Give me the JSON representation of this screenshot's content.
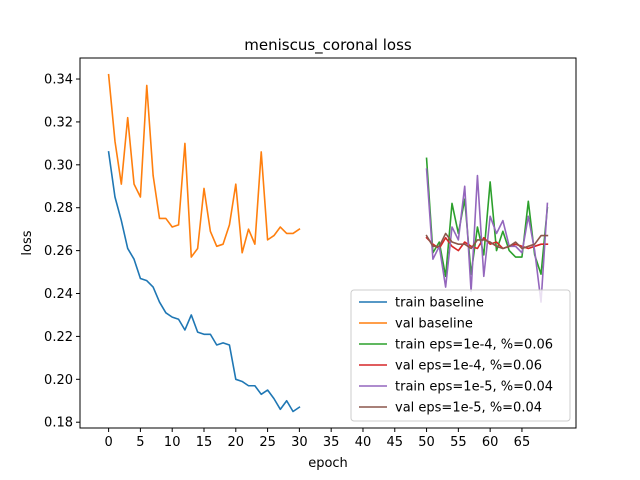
{
  "chart_data": {
    "type": "line",
    "title": "meniscus_coronal loss",
    "xlabel": "epoch",
    "ylabel": "loss",
    "xlim": [
      -4.5,
      73.5
    ],
    "ylim": [
      0.1773,
      0.3498
    ],
    "xticks": [
      0,
      5,
      10,
      15,
      20,
      25,
      30,
      35,
      40,
      45,
      50,
      55,
      60,
      65
    ],
    "yticks": [
      0.18,
      0.2,
      0.22,
      0.24,
      0.26,
      0.28,
      0.3,
      0.32,
      0.34
    ],
    "grid": false,
    "legend_position": "lower-right",
    "series": [
      {
        "name": "train baseline",
        "color": "#1f77b4",
        "x": [
          0,
          1,
          2,
          3,
          4,
          5,
          6,
          7,
          8,
          9,
          10,
          11,
          12,
          13,
          14,
          15,
          16,
          17,
          18,
          19,
          20,
          21,
          22,
          23,
          24,
          25,
          26,
          27,
          28,
          29,
          30
        ],
        "values": [
          0.306,
          0.285,
          0.274,
          0.261,
          0.256,
          0.247,
          0.246,
          0.243,
          0.236,
          0.231,
          0.229,
          0.228,
          0.223,
          0.23,
          0.222,
          0.221,
          0.221,
          0.216,
          0.217,
          0.216,
          0.2,
          0.199,
          0.197,
          0.197,
          0.193,
          0.195,
          0.191,
          0.186,
          0.19,
          0.185,
          0.187
        ]
      },
      {
        "name": "val baseline",
        "color": "#ff7f0e",
        "x": [
          0,
          1,
          2,
          3,
          4,
          5,
          6,
          7,
          8,
          9,
          10,
          11,
          12,
          13,
          14,
          15,
          16,
          17,
          18,
          19,
          20,
          21,
          22,
          23,
          24,
          25,
          26,
          27,
          28,
          29,
          30
        ],
        "values": [
          0.342,
          0.311,
          0.291,
          0.322,
          0.291,
          0.285,
          0.337,
          0.295,
          0.275,
          0.275,
          0.271,
          0.272,
          0.31,
          0.257,
          0.261,
          0.289,
          0.269,
          0.262,
          0.263,
          0.272,
          0.291,
          0.259,
          0.27,
          0.263,
          0.306,
          0.265,
          0.267,
          0.271,
          0.268,
          0.268,
          0.27
        ]
      },
      {
        "name": "train eps=1e-4, %=0.06",
        "color": "#2ca02c",
        "x": [
          50,
          51,
          52,
          53,
          54,
          55,
          56,
          57,
          58,
          59,
          60,
          61,
          62,
          63,
          64,
          65,
          66,
          67,
          68,
          69
        ],
        "values": [
          0.303,
          0.259,
          0.264,
          0.248,
          0.282,
          0.268,
          0.284,
          0.249,
          0.271,
          0.258,
          0.292,
          0.26,
          0.269,
          0.26,
          0.257,
          0.257,
          0.283,
          0.258,
          0.249,
          0.28
        ]
      },
      {
        "name": "val eps=1e-4, %=0.06",
        "color": "#d62728",
        "x": [
          50,
          51,
          52,
          53,
          54,
          55,
          56,
          57,
          58,
          59,
          60,
          61,
          62,
          63,
          64,
          65,
          66,
          67,
          68,
          69
        ],
        "values": [
          0.266,
          0.263,
          0.261,
          0.266,
          0.262,
          0.26,
          0.264,
          0.262,
          0.261,
          0.266,
          0.263,
          0.264,
          0.261,
          0.262,
          0.263,
          0.262,
          0.261,
          0.262,
          0.263,
          0.263
        ]
      },
      {
        "name": "train eps=1e-5, %=0.04",
        "color": "#9467bd",
        "x": [
          50,
          51,
          52,
          53,
          54,
          55,
          56,
          57,
          58,
          59,
          60,
          61,
          62,
          63,
          64,
          65,
          66,
          67,
          68,
          69
        ],
        "values": [
          0.298,
          0.256,
          0.262,
          0.243,
          0.271,
          0.265,
          0.29,
          0.241,
          0.295,
          0.248,
          0.276,
          0.268,
          0.274,
          0.262,
          0.262,
          0.259,
          0.276,
          0.26,
          0.236,
          0.282
        ]
      },
      {
        "name": "val eps=1e-5, %=0.04",
        "color": "#8c564b",
        "x": [
          50,
          51,
          52,
          53,
          54,
          55,
          56,
          57,
          58,
          59,
          60,
          61,
          62,
          63,
          64,
          65,
          66,
          67,
          68,
          69
        ],
        "values": [
          0.267,
          0.262,
          0.262,
          0.268,
          0.264,
          0.263,
          0.263,
          0.261,
          0.265,
          0.265,
          0.264,
          0.262,
          0.261,
          0.262,
          0.264,
          0.261,
          0.262,
          0.263,
          0.267,
          0.267
        ]
      }
    ]
  }
}
